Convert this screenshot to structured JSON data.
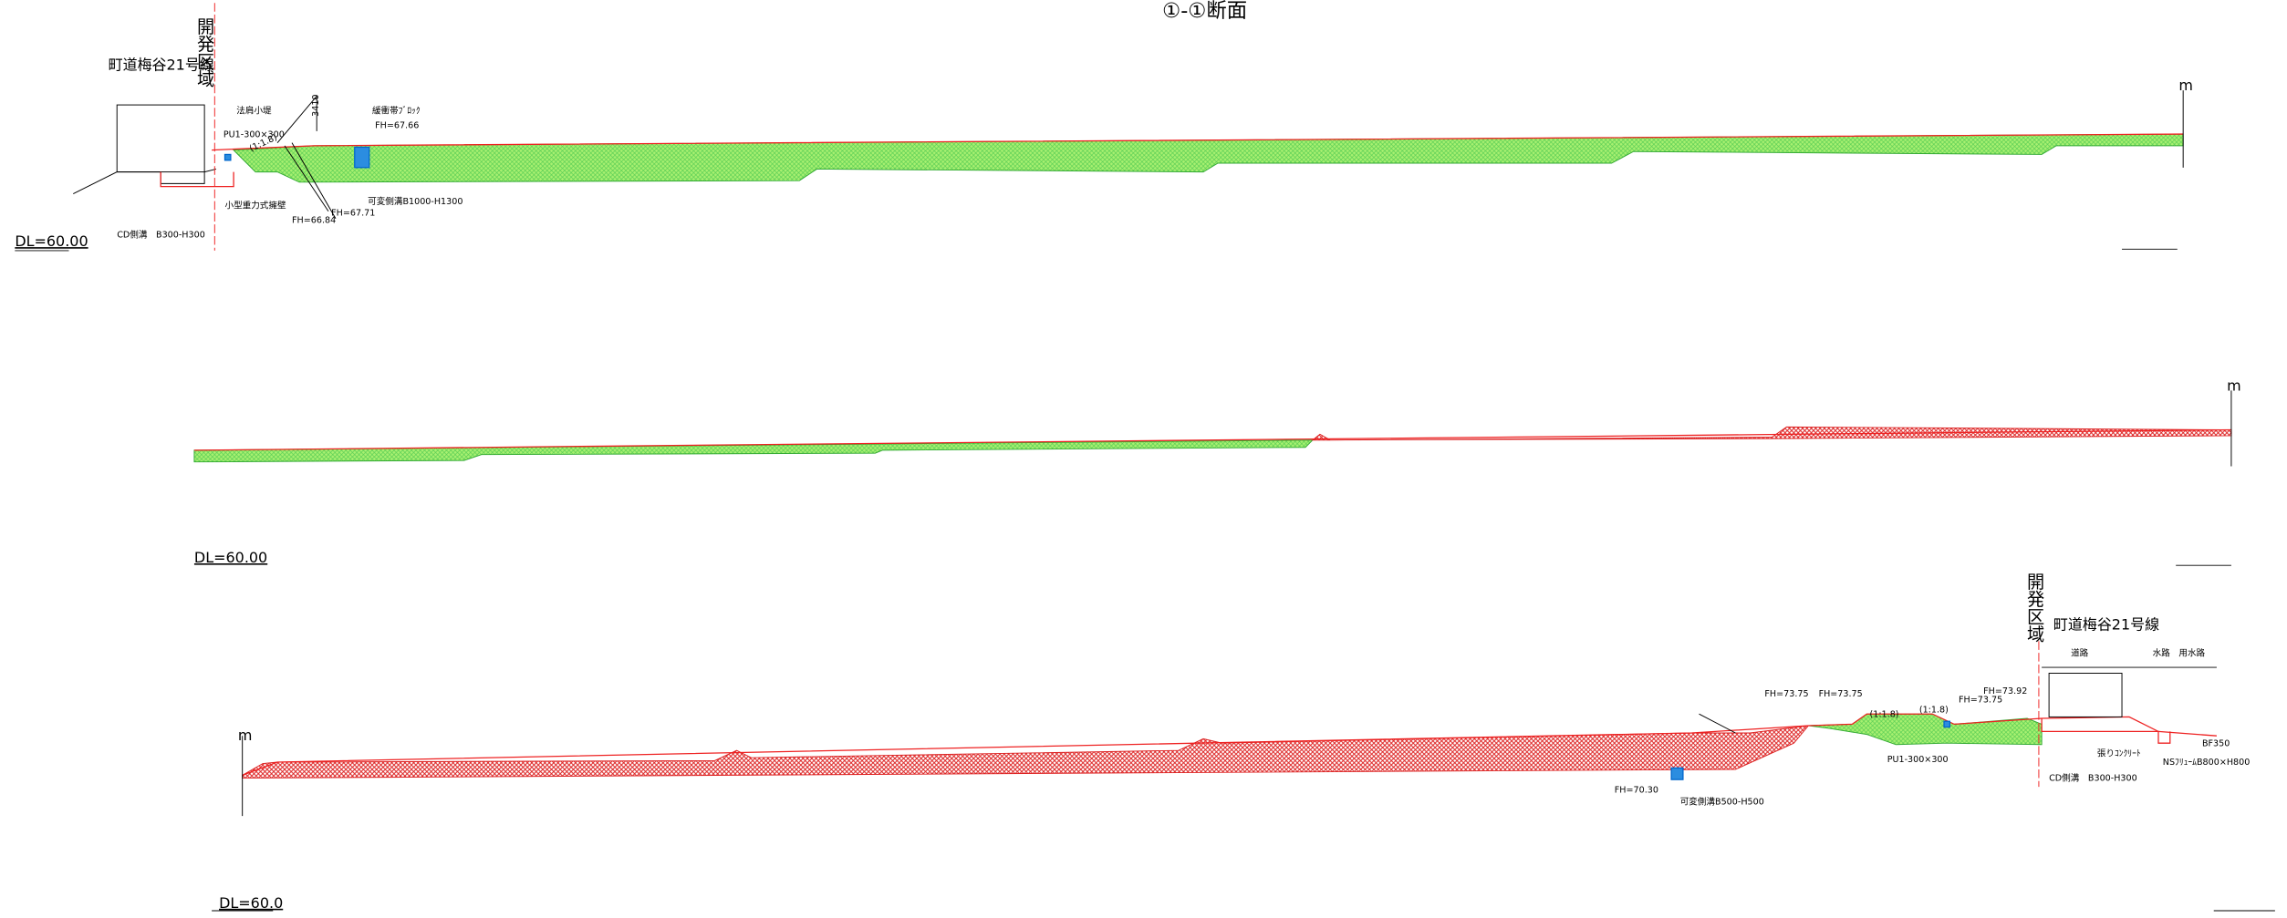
{
  "header": {
    "title": "①-①断面"
  },
  "sections": [
    {
      "unit": "m",
      "datum": "DL=60.00",
      "labels": [
        "開発区域",
        "町道梅谷21号線",
        "法肩小堤",
        "PU1-300×300",
        "緩衝帯ﾌﾞﾛｯｸ",
        "FH=67.66",
        "可変側溝B1000-H1300",
        "小型重力式擁壁",
        "FH=66.84",
        "FH=67.71",
        "CD側溝　B300-H300",
        "3410",
        "(1:1.8)"
      ]
    },
    {
      "unit": "m",
      "datum": "DL=60.00",
      "labels": []
    },
    {
      "unit": "m",
      "datum": "DL=60.0",
      "labels": [
        "開発区域",
        "町道梅谷21号線",
        "道路",
        "水路",
        "用水路",
        "FH=73.75",
        "FH=73.75",
        "FH=73.92",
        "FH=73.75",
        "PU1-300×300",
        "FH=70.30",
        "可変側溝B500-H500",
        "CD側溝　B300-H300",
        "張りｺﾝｸﾘｰﾄ",
        "NSﾌﾘｭｰﾑB800×H800",
        "BF350",
        "(1:1.8)",
        "(1:1.8)"
      ]
    }
  ]
}
